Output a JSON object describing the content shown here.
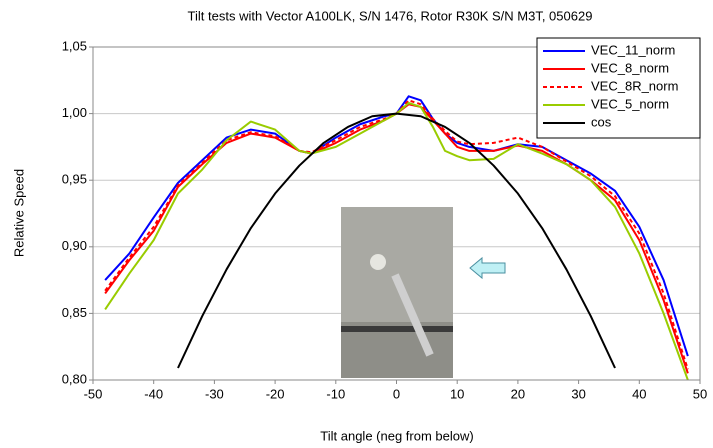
{
  "chart_data": {
    "type": "line",
    "title": "Tilt tests with Vector A100LK, S/N 1476, Rotor R30K S/N M3T, 050629",
    "x_label": "Tilt angle (neg from below)",
    "y_label": "Relative Speed",
    "x": [
      -48,
      -44,
      -40,
      -36,
      -32,
      -28,
      -24,
      -20,
      -16,
      -14,
      -10,
      -6,
      -2,
      0,
      2,
      4,
      6,
      8,
      10,
      12,
      16,
      20,
      24,
      28,
      32,
      36,
      40,
      44,
      48
    ],
    "series": [
      {
        "name": "VEC_11_norm",
        "color": "#0000ff",
        "dashed": false,
        "values": [
          0.875,
          0.895,
          0.922,
          0.948,
          0.965,
          0.982,
          0.988,
          0.985,
          0.972,
          0.97,
          0.982,
          0.992,
          0.998,
          1.0,
          1.013,
          1.01,
          0.996,
          0.985,
          0.978,
          0.975,
          0.972,
          0.977,
          0.975,
          0.965,
          0.955,
          0.942,
          0.915,
          0.875,
          0.818
        ]
      },
      {
        "name": "VEC_8_norm",
        "color": "#ff0000",
        "dashed": false,
        "values": [
          0.865,
          0.89,
          0.912,
          0.945,
          0.962,
          0.978,
          0.985,
          0.982,
          0.972,
          0.97,
          0.978,
          0.988,
          0.995,
          1.0,
          1.007,
          1.005,
          0.995,
          0.985,
          0.975,
          0.972,
          0.972,
          0.976,
          0.972,
          0.962,
          0.95,
          0.935,
          0.905,
          0.86,
          0.805
        ]
      },
      {
        "name": "VEC_8R_norm",
        "color": "#ff0000",
        "dashed": true,
        "values": [
          0.867,
          0.892,
          0.915,
          0.946,
          0.963,
          0.98,
          0.986,
          0.983,
          0.972,
          0.971,
          0.98,
          0.99,
          0.996,
          1.0,
          1.01,
          1.007,
          0.996,
          0.987,
          0.979,
          0.977,
          0.978,
          0.982,
          0.975,
          0.964,
          0.953,
          0.938,
          0.91,
          0.865,
          0.808
        ]
      },
      {
        "name": "VEC_5_norm",
        "color": "#99cc00",
        "dashed": false,
        "values": [
          0.853,
          0.88,
          0.905,
          0.94,
          0.958,
          0.98,
          0.994,
          0.988,
          0.972,
          0.97,
          0.975,
          0.985,
          0.995,
          1.0,
          1.008,
          1.005,
          0.99,
          0.972,
          0.968,
          0.965,
          0.966,
          0.977,
          0.97,
          0.962,
          0.95,
          0.93,
          0.895,
          0.85,
          0.8
        ]
      },
      {
        "name": "cos",
        "color": "#000000",
        "dashed": false,
        "x": [
          -36,
          -32,
          -28,
          -24,
          -20,
          -16,
          -12,
          -8,
          -4,
          0,
          4,
          8,
          12,
          16,
          20,
          24,
          28,
          32,
          36
        ],
        "values": [
          0.809,
          0.848,
          0.883,
          0.914,
          0.94,
          0.961,
          0.978,
          0.99,
          0.998,
          1.0,
          0.998,
          0.99,
          0.978,
          0.961,
          0.94,
          0.914,
          0.883,
          0.848,
          0.809
        ]
      }
    ],
    "xlim": [
      -50,
      50
    ],
    "xticks": [
      -50,
      -40,
      -30,
      -20,
      -10,
      0,
      10,
      20,
      30,
      40,
      50
    ],
    "ylim": [
      0.8,
      1.05
    ],
    "yticks": [
      {
        "value": 0.8,
        "label": "0,80"
      },
      {
        "value": 0.85,
        "label": "0,85"
      },
      {
        "value": 0.9,
        "label": "0,90"
      },
      {
        "value": 0.95,
        "label": "0,95"
      },
      {
        "value": 1.0,
        "label": "1,00"
      },
      {
        "value": 1.05,
        "label": "1,05"
      }
    ],
    "grid": true,
    "legend": "upper-right"
  }
}
